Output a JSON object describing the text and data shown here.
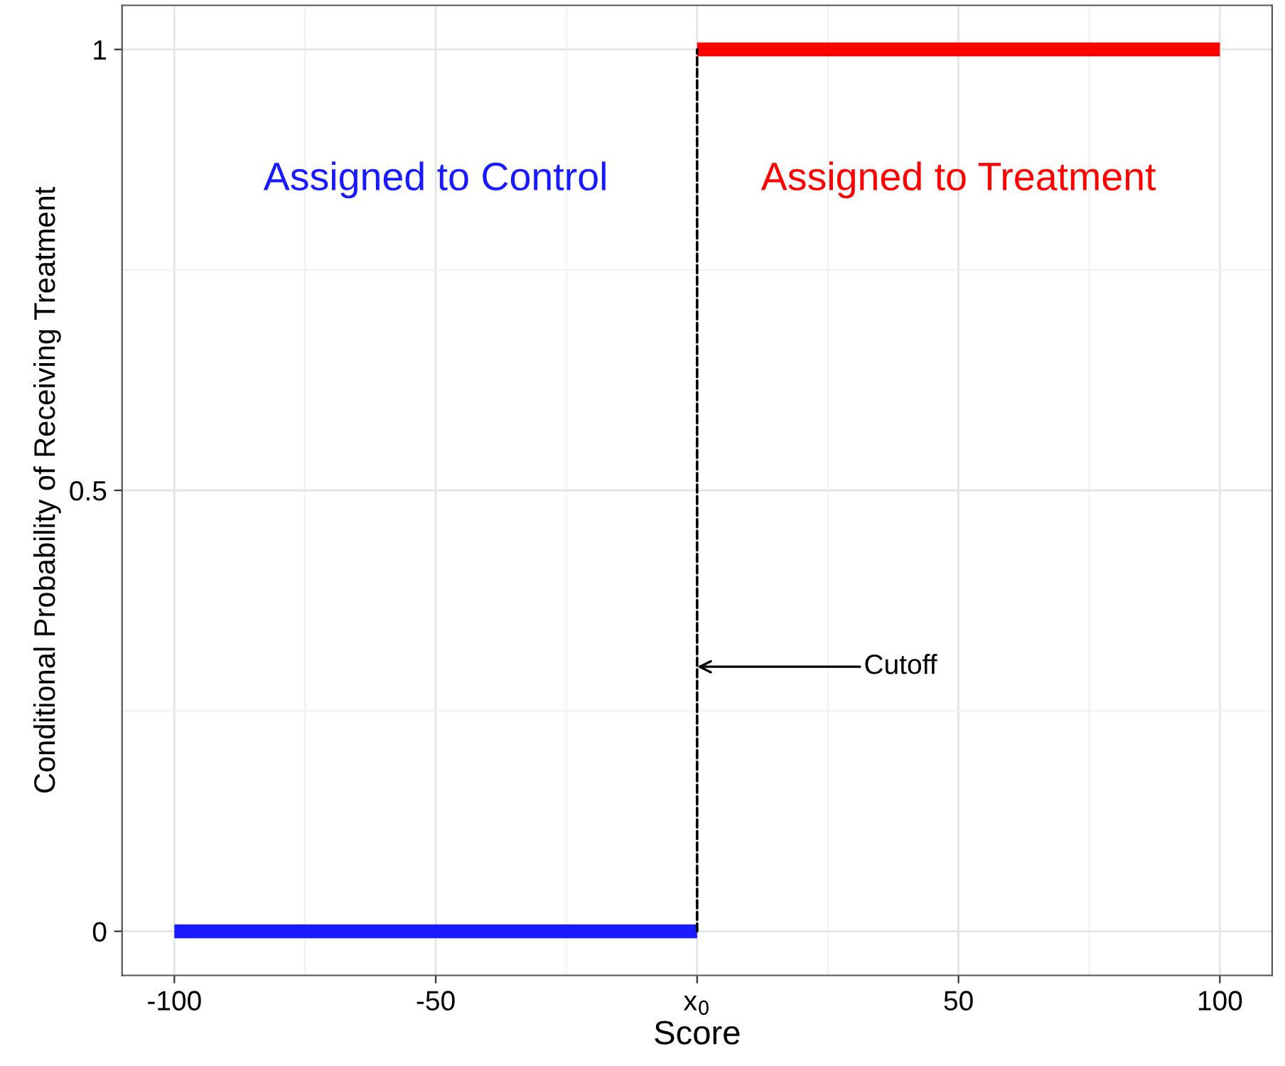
{
  "chart_data": {
    "type": "line",
    "xlabel": "Score",
    "ylabel": "Conditional Probability of Receiving Treatment",
    "series": [
      {
        "name": "Assigned to Control",
        "color": "#1a1aff",
        "x": [
          -100,
          0
        ],
        "values": [
          0,
          0
        ]
      },
      {
        "name": "Assigned to Treatment",
        "color": "#ff0000",
        "x": [
          0,
          100
        ],
        "values": [
          1,
          1
        ]
      },
      {
        "color": "#000000",
        "x": [
          0,
          0
        ],
        "values": [
          0,
          1
        ],
        "line_style": "dashed"
      }
    ],
    "annotations": [
      {
        "text": "Cutoff",
        "x": 0,
        "y": 0.3
      }
    ],
    "xlim": [
      -110,
      110
    ],
    "ylim": [
      -0.05,
      1.05
    ],
    "xticks": [
      -100,
      -50,
      {
        "value": 0,
        "label": "x$_{0}$"
      },
      50,
      100
    ],
    "yticks": [
      0,
      0.5,
      1
    ],
    "grid": true,
    "legend": false,
    "marker": "none"
  }
}
